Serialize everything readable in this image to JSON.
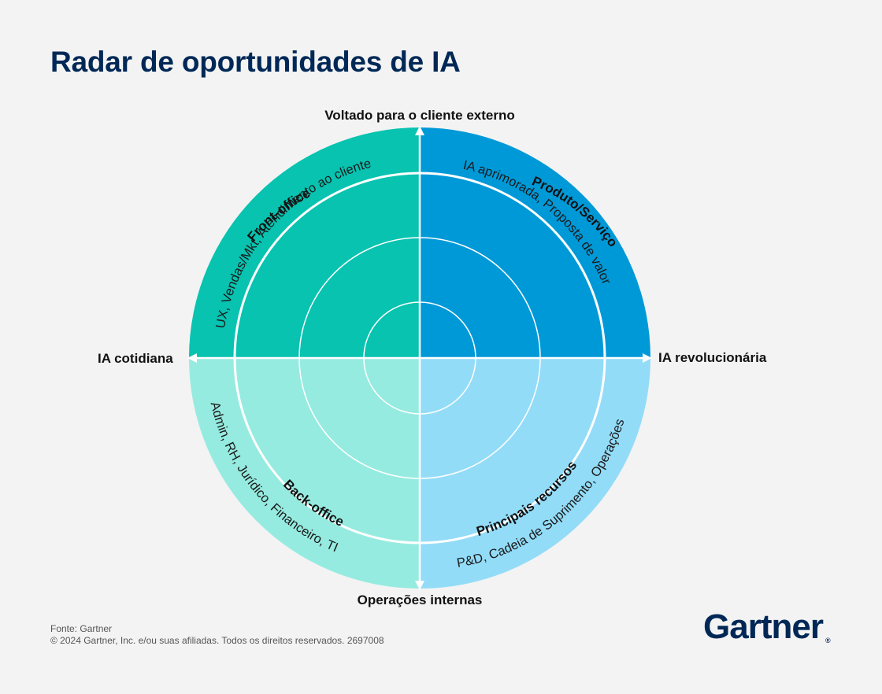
{
  "title": "Radar de oportunidades de IA",
  "axes": {
    "top": "Voltado para o cliente externo",
    "bottom": "Operações internas",
    "left": "IA cotidiana",
    "right": "IA revolucionária"
  },
  "quadrants": [
    {
      "id": "front-office",
      "title": "Front-office",
      "subtitle": "UX, Vendas/Mkt, Atendimento ao cliente",
      "color": "#07c3b0"
    },
    {
      "id": "produto",
      "title": "Produto/Serviços",
      "subtitle": "IA aprimorada, Proposta de valor",
      "color": "#0099d8"
    },
    {
      "id": "back-office",
      "title": "Back-office",
      "subtitle": "Admin, RH, Jurídico, Financeiro, TI",
      "color": "#96ebe0"
    },
    {
      "id": "principais",
      "title": "Principais recursos",
      "subtitle": "P&D, Cadeia de Suprimento, Operações",
      "color": "#93dcf8"
    }
  ],
  "footer": {
    "source": "Fonte: Gartner",
    "copyright": "© 2024 Gartner, Inc. e/ou suas afiliadas. Todos os direitos reservados. 2697008"
  },
  "logo": {
    "text": "Gartner",
    "mark": "®"
  }
}
